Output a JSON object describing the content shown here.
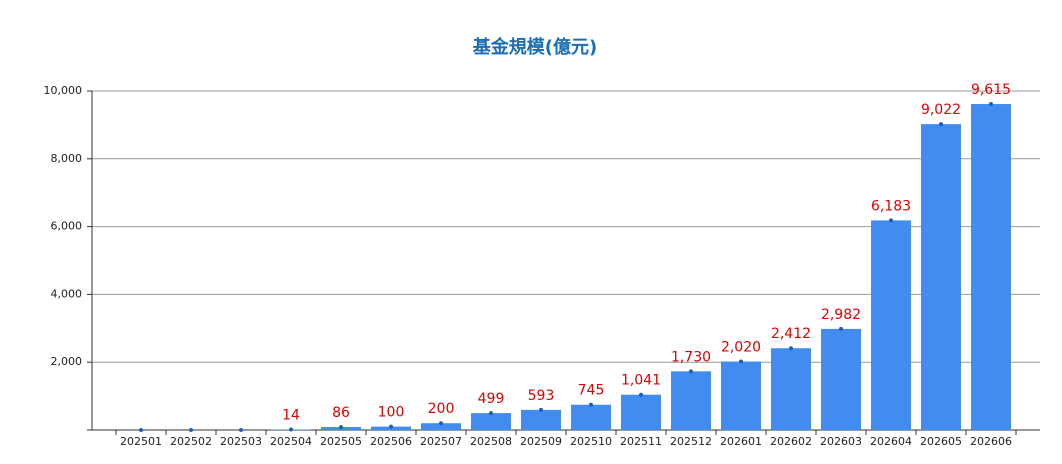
{
  "chart_data": {
    "type": "bar",
    "title": "基金規模(億元)",
    "categories": [
      "202501",
      "202502",
      "202503",
      "202504",
      "202505",
      "202506",
      "202507",
      "202508",
      "202509",
      "202510",
      "202511",
      "202512",
      "202601",
      "202602",
      "202603",
      "202604",
      "202605",
      "202606"
    ],
    "values": [
      0,
      0,
      0,
      14,
      86,
      100,
      200,
      499,
      593,
      745,
      1041,
      1730,
      2020,
      2412,
      2982,
      6183,
      9022,
      9615
    ],
    "value_labels": [
      null,
      null,
      null,
      "14",
      "86",
      "100",
      "200",
      "499",
      "593",
      "745",
      "1,041",
      "1,730",
      "2,020",
      "2,412",
      "2,982",
      "6,183",
      "9,022",
      "9,615"
    ],
    "color": "#428bef",
    "label_color": "#e00000",
    "ylim": [
      0,
      10000
    ],
    "yticks": [
      {
        "value": 2000,
        "label": "2,000"
      },
      {
        "value": 4000,
        "label": "4,000"
      },
      {
        "value": 6000,
        "label": "6,000"
      },
      {
        "value": 8000,
        "label": "8,000"
      },
      {
        "value": 10000,
        "label": "10,000"
      }
    ],
    "grid": true
  }
}
